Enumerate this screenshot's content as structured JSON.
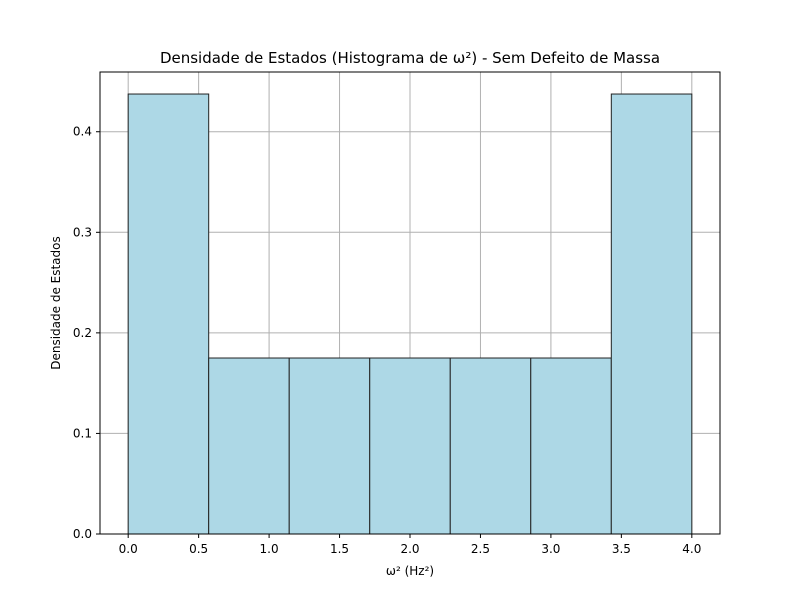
{
  "chart_data": {
    "type": "bar",
    "title": "Densidade de Estados (Histograma de ω²) - Sem Defeito de Massa",
    "xlabel": "ω² (Hz²)",
    "ylabel": "Densidade de Estados",
    "bin_edges": [
      0.0,
      0.5714,
      1.1429,
      1.7143,
      2.2857,
      2.8571,
      3.4286,
      4.0
    ],
    "values": [
      0.4375,
      0.175,
      0.175,
      0.175,
      0.175,
      0.175,
      0.4375
    ],
    "xlim": [
      -0.2,
      4.2
    ],
    "ylim": [
      0,
      0.4594
    ],
    "xticks": [
      0.0,
      0.5,
      1.0,
      1.5,
      2.0,
      2.5,
      3.0,
      3.5,
      4.0
    ],
    "xtick_labels": [
      "0.0",
      "0.5",
      "1.0",
      "1.5",
      "2.0",
      "2.5",
      "3.0",
      "3.5",
      "4.0"
    ],
    "yticks": [
      0.0,
      0.1,
      0.2,
      0.3,
      0.4
    ],
    "ytick_labels": [
      "0.0",
      "0.1",
      "0.2",
      "0.3",
      "0.4"
    ],
    "grid": true,
    "bar_color": "#add8e6",
    "edge_color": "#222222"
  }
}
